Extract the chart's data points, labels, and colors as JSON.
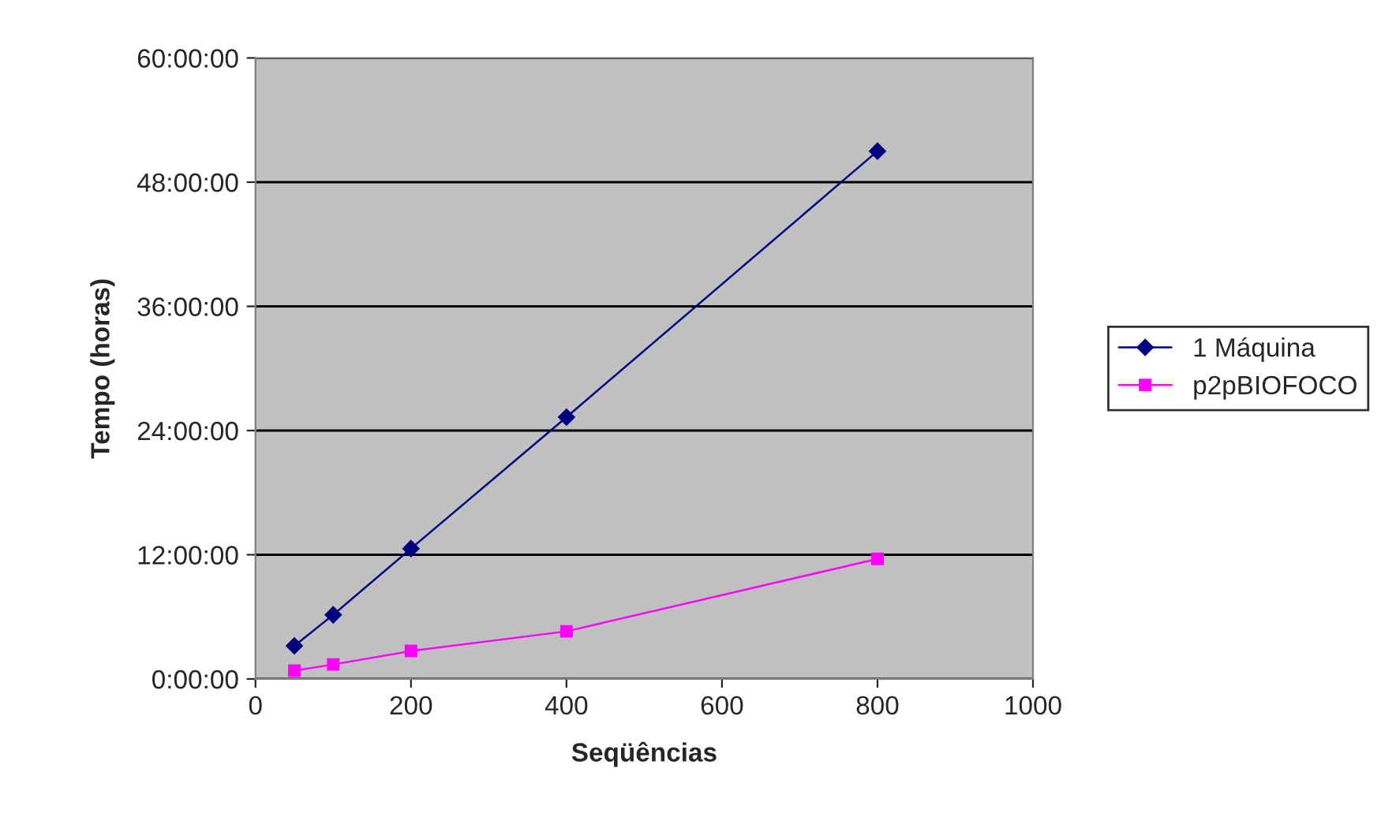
{
  "chart_data": {
    "type": "line",
    "xlabel": "Seqüências",
    "ylabel": "Tempo (horas)",
    "x": [
      50,
      100,
      200,
      400,
      800
    ],
    "series": [
      {
        "name": "1 Máquina",
        "color": "#000080",
        "marker": "diamond",
        "values": [
          3.2,
          6.2,
          12.6,
          25.3,
          51.0
        ]
      },
      {
        "name": "p2pBIOFOCO",
        "color": "#ff00ff",
        "marker": "square",
        "values": [
          0.8,
          1.4,
          2.7,
          4.6,
          11.6
        ]
      }
    ],
    "xlim": [
      0,
      1000
    ],
    "xticks": [
      0,
      200,
      400,
      600,
      800,
      1000
    ],
    "ylim": [
      0,
      60
    ],
    "yticks": [
      {
        "value": 0,
        "label": "0:00:00"
      },
      {
        "value": 12,
        "label": "12:00:00"
      },
      {
        "value": 24,
        "label": "24:00:00"
      },
      {
        "value": 36,
        "label": "36:00:00"
      },
      {
        "value": 48,
        "label": "48:00:00"
      },
      {
        "value": 60,
        "label": "60:00:00"
      }
    ],
    "grid": "y",
    "legend": "right"
  }
}
